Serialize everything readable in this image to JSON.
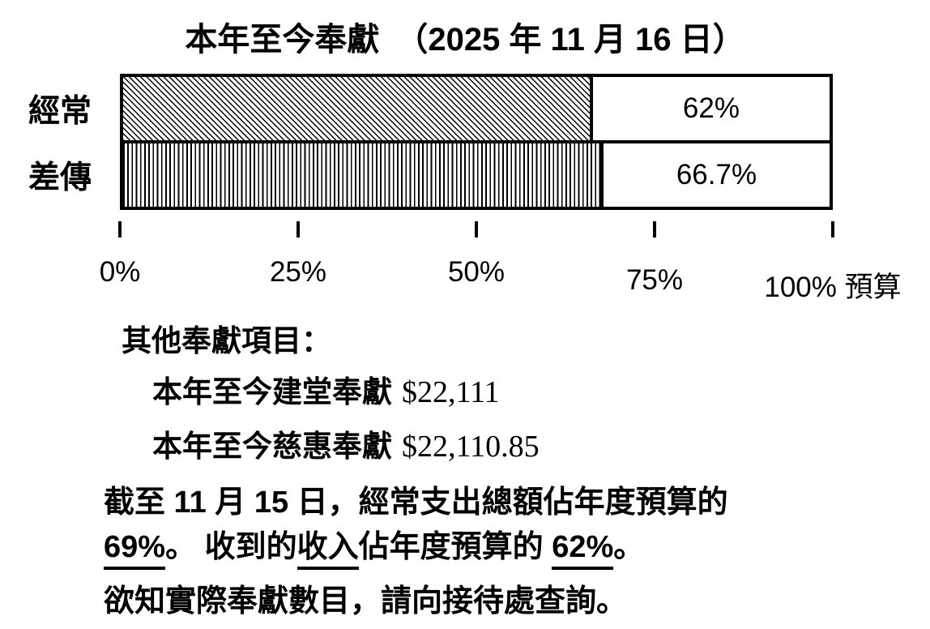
{
  "slide": {
    "background": "#ffffff",
    "text_color": "#000000"
  },
  "title": "本年至今奉獻　（2025 年 11 月 16 日）",
  "chart_data": {
    "type": "bar",
    "orientation": "horizontal",
    "title": "本年至今奉獻 （2025 年 11 月 16 日）",
    "categories": [
      "經常",
      "差傳"
    ],
    "values": [
      62,
      66.7
    ],
    "value_labels": [
      "62%",
      "66.7%"
    ],
    "xlabel": "預算",
    "xlim": [
      0,
      100
    ],
    "x_tick_labels": [
      "0%",
      "25%",
      "50%",
      "75%",
      "100%"
    ],
    "x_tick_pos": [
      0,
      25,
      50,
      75,
      100
    ],
    "bar_patterns": [
      "diagonal-hatch",
      "vertical-lines"
    ],
    "visual_fill_pct": [
      66.5,
      68
    ],
    "grid": false,
    "legend": false,
    "bar_border_color": "#000000",
    "bar_fill_foreground": "#000000",
    "bar_fill_background": "#ffffff"
  },
  "notes": {
    "other_heading": "其他奉獻項目：",
    "items": [
      {
        "label": "本年至今建堂奉獻",
        "amount": "$22,111"
      },
      {
        "label": "本年至今慈惠奉獻",
        "amount": "$22,110.85"
      }
    ],
    "summary_line1": "截至 11 月 15 日，經常支出總額佔年度預算的",
    "summary_line2_segments": [
      {
        "text": "69%",
        "underline": true
      },
      {
        "text": "。 收到的",
        "underline": false
      },
      {
        "text": "收入",
        "underline": true
      },
      {
        "text": "佔年度預算的 ",
        "underline": false
      },
      {
        "text": "62%",
        "underline": true
      },
      {
        "text": "。",
        "underline": false
      }
    ],
    "footer": "欲知實際奉獻數目，請向接待處查詢。"
  }
}
